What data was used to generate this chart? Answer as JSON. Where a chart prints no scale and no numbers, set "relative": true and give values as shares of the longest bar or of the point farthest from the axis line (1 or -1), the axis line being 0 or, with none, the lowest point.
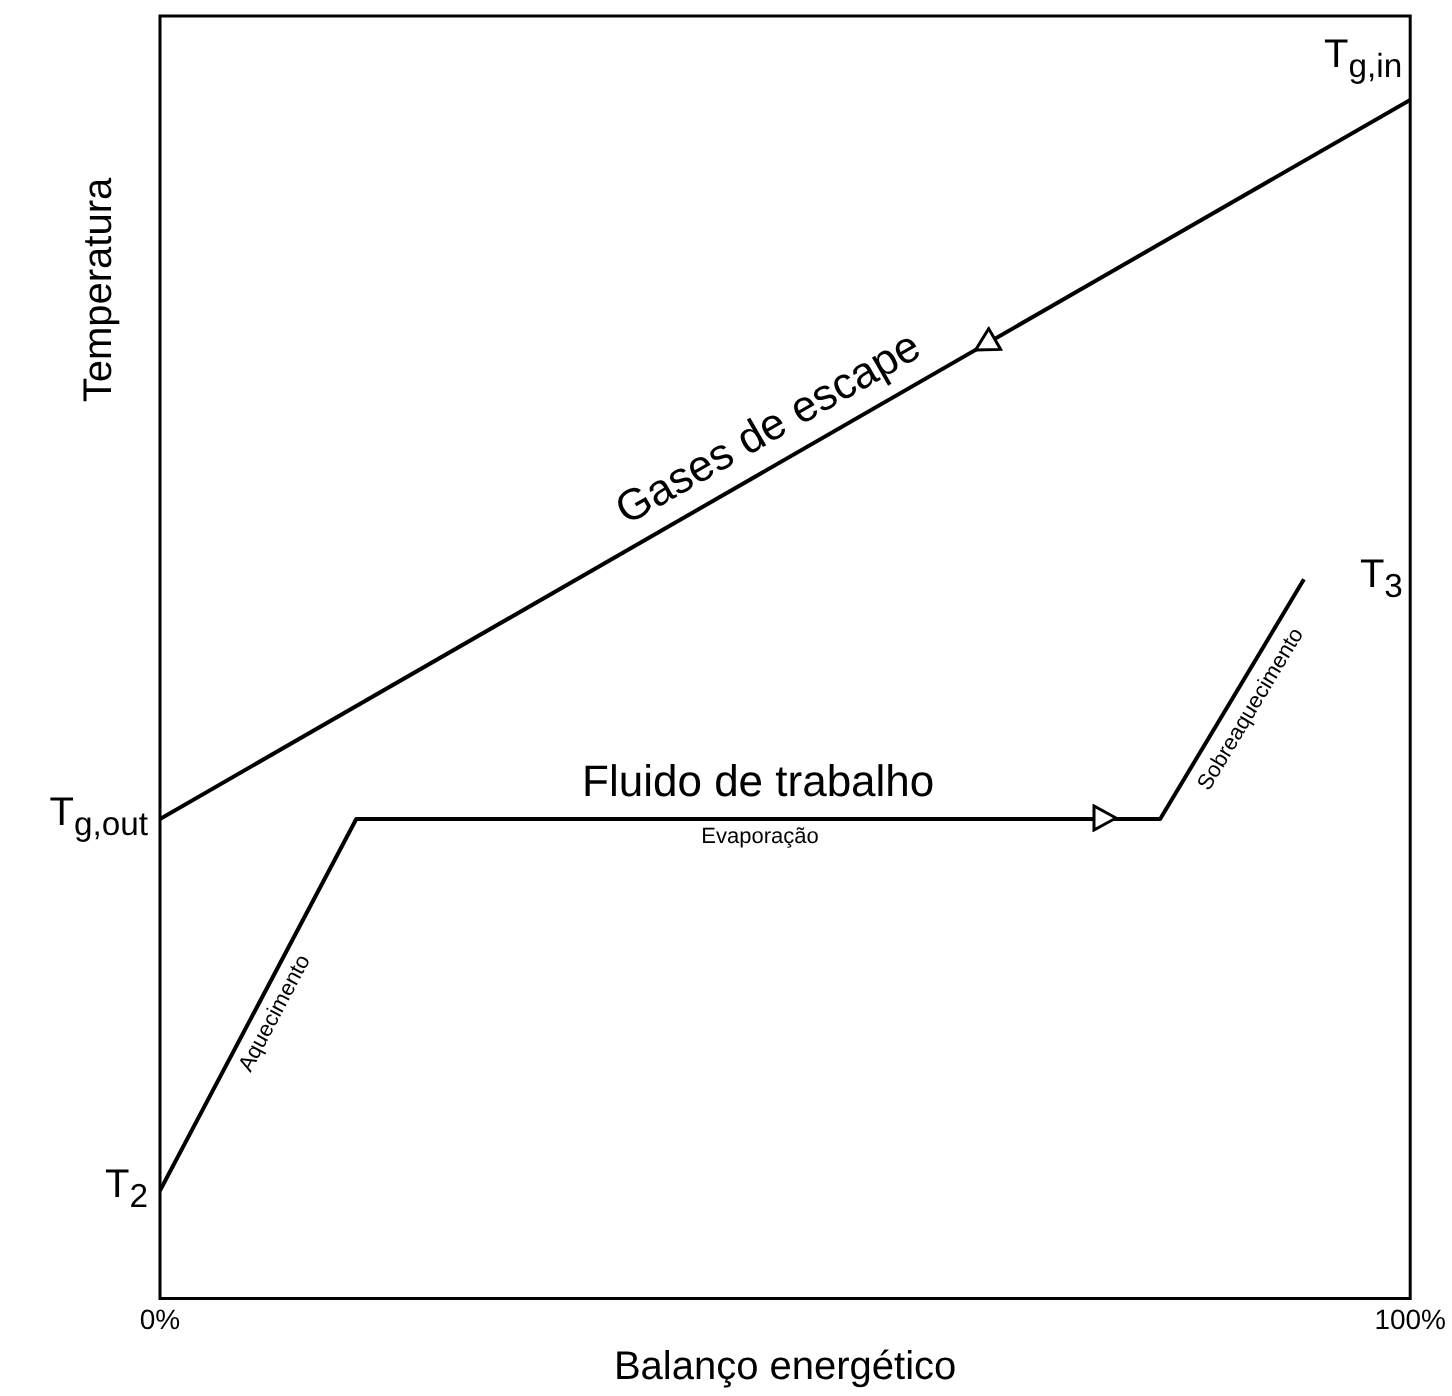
{
  "chart_data": {
    "type": "line",
    "relative": true,
    "xlabel": "Balanço energético",
    "ylabel": "Temperatura",
    "xlim": [
      0,
      100
    ],
    "xticks": [
      {
        "value": 0,
        "label": "0%"
      },
      {
        "value": 100,
        "label": "100%"
      }
    ],
    "legend": false,
    "marker": "none",
    "line_style": "solid",
    "series": [
      {
        "name": "Gases de escape",
        "color": "#000000",
        "x": [
          0,
          100
        ],
        "values": [
          0.4,
          1
        ]
      },
      {
        "name": "Fluido de trabalho",
        "color": "#000000",
        "x": [
          0,
          15.7,
          80,
          91.5
        ],
        "values": [
          0.09,
          0.4,
          0.4,
          0.6
        ]
      }
    ],
    "annotations": [
      {
        "text": "T$_{g,in}$",
        "x": 100,
        "y": 1
      },
      {
        "text": "T$_{g,out}$",
        "x": 0,
        "y": 0.4
      },
      {
        "text": "T$_{2}$",
        "x": 0,
        "y": 0.09
      },
      {
        "text": "T$_{3}$",
        "x": 91.5,
        "y": 0.6
      },
      {
        "text": "Aquecimento",
        "x": 7.8,
        "y": 0.245
      },
      {
        "text": "Evaporação",
        "x": 48,
        "y": 0.4
      },
      {
        "text": "Sobreaquecimento",
        "x": 86,
        "y": 0.5
      }
    ]
  }
}
